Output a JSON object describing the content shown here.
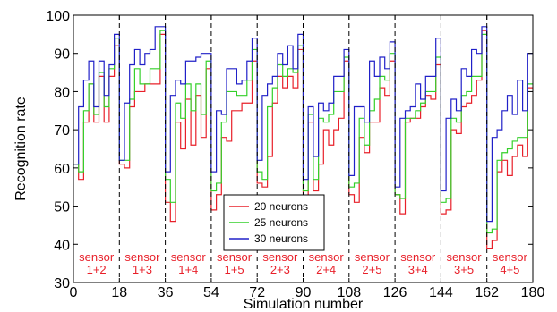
{
  "chart_data": {
    "type": "line",
    "xlabel": "Simulation number",
    "ylabel": "Recognition rate",
    "xlim": [
      0,
      180
    ],
    "ylim": [
      30,
      100
    ],
    "x_ticks": [
      0,
      18,
      36,
      54,
      72,
      90,
      108,
      126,
      144,
      162,
      180
    ],
    "y_ticks": [
      30,
      40,
      50,
      60,
      70,
      80,
      90,
      100
    ],
    "separators": [
      18,
      36,
      54,
      72,
      90,
      108,
      126,
      144,
      162
    ],
    "groups": [
      {
        "top": "sensor",
        "bottom": "1+2",
        "x": 9
      },
      {
        "top": "sensor",
        "bottom": "1+3",
        "x": 27
      },
      {
        "top": "sensor",
        "bottom": "1+4",
        "x": 45
      },
      {
        "top": "sensor",
        "bottom": "1+5",
        "x": 63
      },
      {
        "top": "sensor",
        "bottom": "2+3",
        "x": 81
      },
      {
        "top": "sensor",
        "bottom": "2+4",
        "x": 99
      },
      {
        "top": "sensor",
        "bottom": "2+5",
        "x": 117
      },
      {
        "top": "sensor",
        "bottom": "3+4",
        "x": 135
      },
      {
        "top": "sensor",
        "bottom": "3+5",
        "x": 153
      },
      {
        "top": "sensor",
        "bottom": "4+5",
        "x": 171
      }
    ],
    "legend_position": "bottom-center",
    "grid": false,
    "series": [
      {
        "name": "20 neurons",
        "color": "#e8202a",
        "values": [
          61,
          61,
          57,
          57,
          72,
          72,
          82,
          82,
          72,
          72,
          84,
          84,
          72,
          72,
          84,
          84,
          92,
          92,
          61,
          61,
          60,
          60,
          76,
          76,
          80,
          80,
          80,
          80,
          82,
          82,
          82,
          82,
          82,
          82,
          95,
          95,
          51,
          51,
          46,
          46,
          72,
          72,
          65,
          65,
          78,
          78,
          66,
          66,
          79,
          79,
          68,
          68,
          86,
          86,
          49,
          49,
          53,
          53,
          68,
          68,
          67,
          67,
          75,
          75,
          75,
          75,
          77,
          77,
          77,
          77,
          88,
          88,
          56,
          56,
          55,
          55,
          63,
          63,
          77,
          77,
          84,
          84,
          81,
          81,
          84,
          84,
          81,
          81,
          91,
          91,
          50,
          50,
          72,
          72,
          54,
          54,
          61,
          61,
          70,
          70,
          66,
          66,
          70,
          70,
          73,
          73,
          88,
          88,
          53,
          53,
          51,
          51,
          68,
          68,
          64,
          64,
          72,
          72,
          72,
          72,
          81,
          81,
          79,
          79,
          88,
          88,
          53,
          53,
          48,
          48,
          72,
          72,
          73,
          73,
          73,
          73,
          76,
          76,
          79,
          79,
          78,
          78,
          87,
          87,
          48,
          48,
          49,
          49,
          70,
          70,
          69,
          69,
          76,
          76,
          77,
          77,
          79,
          79,
          83,
          83,
          96,
          96,
          39,
          39,
          41,
          41,
          59,
          59,
          62,
          62,
          58,
          58,
          63,
          63,
          66,
          66,
          63,
          63,
          81,
          81
        ]
      },
      {
        "name": "25 neurons",
        "color": "#34d02a",
        "values": [
          61,
          61,
          59,
          59,
          75,
          75,
          82,
          82,
          74,
          74,
          85,
          85,
          76,
          76,
          86,
          86,
          94,
          94,
          62,
          62,
          62,
          62,
          78,
          78,
          86,
          86,
          82,
          82,
          82,
          82,
          86,
          86,
          86,
          86,
          96,
          96,
          57,
          57,
          51,
          51,
          77,
          77,
          73,
          73,
          82,
          82,
          75,
          75,
          82,
          82,
          74,
          74,
          88,
          88,
          54,
          54,
          56,
          56,
          72,
          72,
          80,
          80,
          80,
          80,
          79,
          79,
          79,
          79,
          83,
          83,
          91,
          91,
          59,
          59,
          57,
          57,
          76,
          76,
          81,
          81,
          87,
          87,
          84,
          84,
          86,
          86,
          85,
          85,
          92,
          92,
          54,
          54,
          74,
          74,
          57,
          57,
          73,
          73,
          72,
          72,
          74,
          74,
          80,
          80,
          80,
          80,
          89,
          89,
          55,
          55,
          56,
          56,
          73,
          73,
          66,
          66,
          75,
          75,
          78,
          78,
          84,
          84,
          83,
          83,
          90,
          90,
          53,
          53,
          52,
          52,
          73,
          73,
          73,
          73,
          75,
          75,
          77,
          77,
          80,
          80,
          80,
          80,
          89,
          89,
          51,
          51,
          52,
          52,
          73,
          73,
          72,
          72,
          79,
          79,
          80,
          80,
          84,
          84,
          84,
          84,
          95,
          95,
          43,
          43,
          44,
          44,
          62,
          62,
          64,
          64,
          65,
          65,
          67,
          67,
          68,
          68,
          68,
          68,
          82,
          82
        ]
      },
      {
        "name": "30 neurons",
        "color": "#2020c8",
        "values": [
          61,
          61,
          76,
          76,
          83,
          83,
          88,
          88,
          76,
          76,
          88,
          88,
          79,
          79,
          87,
          87,
          95,
          95,
          62,
          62,
          77,
          77,
          87,
          87,
          91,
          91,
          87,
          87,
          90,
          90,
          91,
          91,
          97,
          97,
          97,
          97,
          59,
          59,
          79,
          79,
          83,
          83,
          82,
          82,
          88,
          88,
          88,
          88,
          89,
          89,
          90,
          90,
          90,
          90,
          59,
          59,
          75,
          75,
          74,
          74,
          86,
          86,
          86,
          86,
          82,
          82,
          83,
          83,
          88,
          88,
          94,
          94,
          62,
          62,
          79,
          79,
          82,
          82,
          84,
          84,
          90,
          90,
          87,
          87,
          92,
          92,
          86,
          86,
          95,
          95,
          57,
          57,
          76,
          76,
          63,
          63,
          77,
          77,
          75,
          75,
          77,
          77,
          84,
          84,
          84,
          84,
          91,
          91,
          58,
          58,
          76,
          76,
          76,
          76,
          72,
          72,
          88,
          88,
          84,
          84,
          89,
          89,
          86,
          86,
          93,
          93,
          55,
          55,
          73,
          73,
          75,
          75,
          76,
          76,
          82,
          82,
          78,
          78,
          84,
          84,
          84,
          84,
          94,
          94,
          54,
          54,
          73,
          73,
          78,
          78,
          75,
          75,
          86,
          86,
          84,
          84,
          91,
          91,
          90,
          90,
          97,
          97,
          46,
          46,
          68,
          68,
          70,
          70,
          75,
          75,
          79,
          79,
          74,
          74,
          83,
          83,
          75,
          75,
          90,
          90
        ]
      }
    ]
  }
}
